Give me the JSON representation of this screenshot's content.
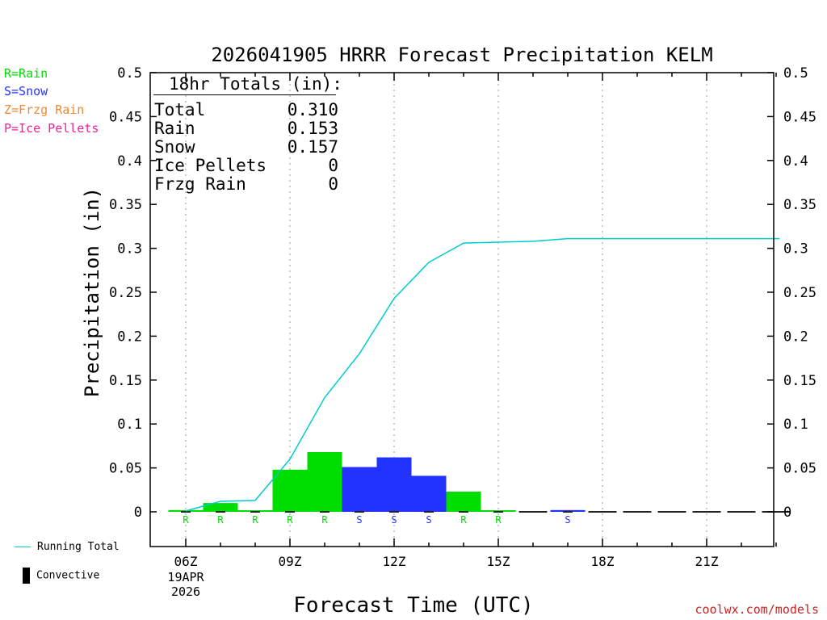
{
  "chart_data": {
    "type": "bar",
    "title": "2026041905 HRRR Forecast Precipitation KELM",
    "xlabel": "Forecast Time (UTC)",
    "ylabel": "Precipitation (in)",
    "ylim": [
      -0.04,
      0.5
    ],
    "yticks": [
      0,
      0.05,
      0.1,
      0.15,
      0.2,
      0.25,
      0.3,
      0.35,
      0.4,
      0.45,
      0.5
    ],
    "ytick_labels": [
      "0",
      "0.05",
      "0.1",
      "0.15",
      "0.2",
      "0.25",
      "0.3",
      "0.35",
      "0.4",
      "0.45",
      "0.5"
    ],
    "xlim": [
      5.1,
      23.1
    ],
    "xticks": [
      6,
      9,
      12,
      15,
      18,
      21
    ],
    "xtick_labels": [
      "06Z",
      "09Z",
      "12Z",
      "15Z",
      "18Z",
      "21Z"
    ],
    "date_label_line1": "19APR",
    "date_label_line2": "2026",
    "bars": [
      {
        "hour": 6,
        "value": 0.002,
        "type": "R"
      },
      {
        "hour": 7,
        "value": 0.01,
        "type": "R"
      },
      {
        "hour": 8,
        "value": 0.001,
        "type": "R"
      },
      {
        "hour": 9,
        "value": 0.048,
        "type": "R"
      },
      {
        "hour": 10,
        "value": 0.068,
        "type": "R"
      },
      {
        "hour": 11,
        "value": 0.051,
        "type": "S"
      },
      {
        "hour": 12,
        "value": 0.062,
        "type": "S"
      },
      {
        "hour": 13,
        "value": 0.041,
        "type": "S"
      },
      {
        "hour": 14,
        "value": 0.023,
        "type": "R"
      },
      {
        "hour": 15,
        "value": 0.001,
        "type": "R"
      },
      {
        "hour": 16,
        "value": 0.0,
        "type": ""
      },
      {
        "hour": 17,
        "value": 0.002,
        "type": "S"
      },
      {
        "hour": 18,
        "value": 0.0,
        "type": ""
      },
      {
        "hour": 19,
        "value": 0.0,
        "type": ""
      },
      {
        "hour": 20,
        "value": 0.0,
        "type": ""
      },
      {
        "hour": 21,
        "value": 0.0,
        "type": ""
      },
      {
        "hour": 22,
        "value": 0.0,
        "type": ""
      },
      {
        "hour": 23,
        "value": 0.0,
        "type": ""
      }
    ],
    "running_total": {
      "name": "Running Total",
      "x": [
        6,
        7,
        8,
        9,
        10,
        11,
        12,
        13,
        14,
        15,
        16,
        17,
        18,
        19,
        20,
        21,
        22,
        23.1
      ],
      "y": [
        0.001,
        0.012,
        0.013,
        0.06,
        0.13,
        0.18,
        0.243,
        0.284,
        0.306,
        0.307,
        0.308,
        0.311,
        0.311,
        0.311,
        0.311,
        0.311,
        0.311,
        0.311
      ]
    },
    "type_colors": {
      "R": "#00dd00",
      "S": "#2233ff",
      "Z": "#ee8833",
      "P": "#ee2299"
    },
    "line_color": "#00cccc"
  },
  "legend": {
    "rain": "R=Rain",
    "snow": "S=Snow",
    "frzg_rain": "Z=Frzg Rain",
    "ice_pellets": "P=Ice Pellets",
    "running_total": "Running Total",
    "convective": "Convective"
  },
  "totals": {
    "title": "18hr Totals (in):",
    "rows": [
      {
        "label": "Total",
        "value": "0.310"
      },
      {
        "label": "Rain",
        "value": "0.153"
      },
      {
        "label": "Snow",
        "value": "0.157"
      },
      {
        "label": "Ice Pellets",
        "value": "0"
      },
      {
        "label": "Frzg Rain",
        "value": "0"
      }
    ]
  },
  "credit": "coolwx.com/models"
}
